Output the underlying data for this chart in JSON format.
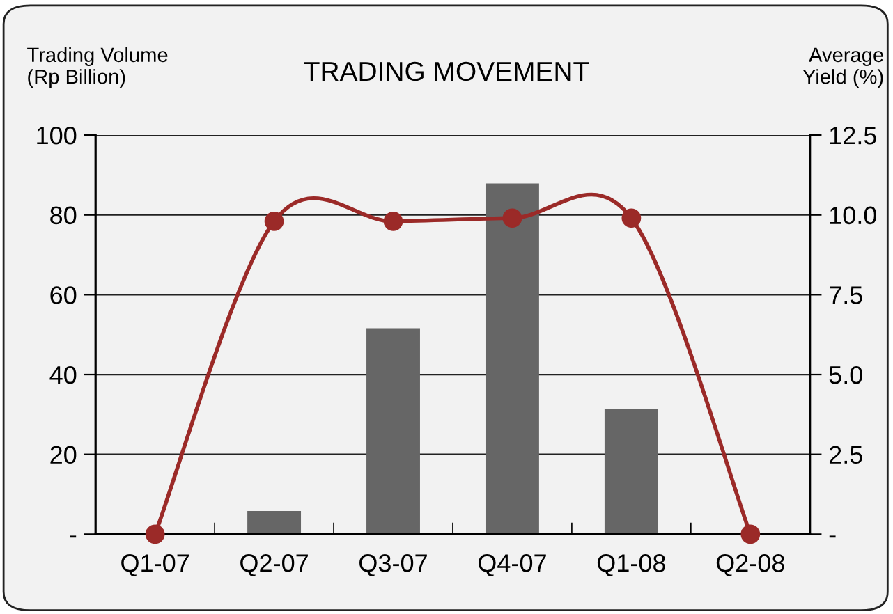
{
  "chart_data": {
    "type": "bar",
    "title": "TRADING MOVEMENT",
    "ylabel": "Trading Volume\n(Rp Billion)",
    "y2label": "Average\nYield (%)",
    "categories": [
      "Q1-07",
      "Q2-07",
      "Q3-07",
      "Q4-07",
      "Q1-08",
      "Q2-08"
    ],
    "series": [
      {
        "color": "#666666",
        "values": [
          0,
          5.8,
          51.6,
          87.9,
          31.4,
          0
        ]
      },
      {
        "type": "line",
        "axis": "y2",
        "color": "#9b2a28",
        "marker": "circle",
        "values": [
          0,
          9.8,
          9.8,
          9.9,
          9.9,
          0
        ]
      }
    ],
    "ylim": [
      0,
      100
    ],
    "yticks": [
      {
        "value": 0,
        "label": "-"
      },
      20,
      40,
      60,
      80,
      100
    ],
    "y2lim": [
      0,
      12.5
    ],
    "y2ticks": [
      {
        "value": 0,
        "label": "-"
      },
      2.5,
      {
        "value": 5,
        "label": "5.0"
      },
      7.5,
      {
        "value": 10,
        "label": "10.0"
      },
      12.5
    ],
    "grid": "y",
    "legend": false
  }
}
